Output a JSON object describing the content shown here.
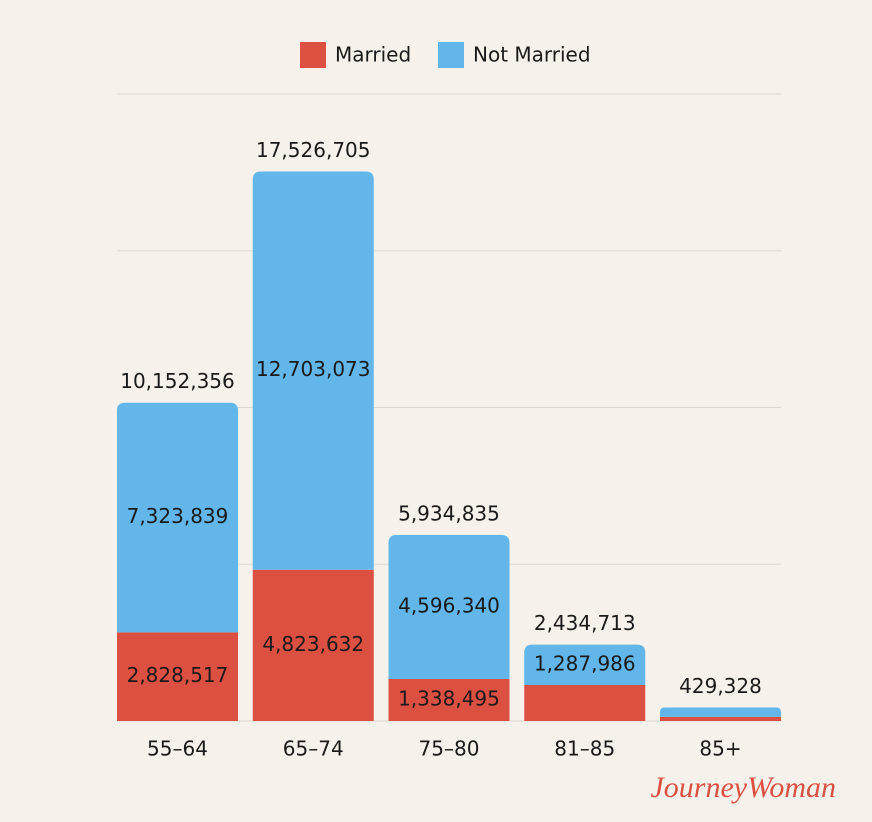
{
  "chart_data": {
    "type": "stacked-bar",
    "categories": [
      "55–64",
      "65–74",
      "75–80",
      "81–85",
      "85+"
    ],
    "series": [
      {
        "name": "Married",
        "color": "#dc5042",
        "values": [
          2828517,
          4823632,
          1338495,
          1146727,
          130000
        ],
        "value_labels": [
          "2,828,517",
          "4,823,632",
          "1,338,495",
          null,
          null
        ]
      },
      {
        "name": "Not Married",
        "color": "#62b6ea",
        "values": [
          7323839,
          12703073,
          4596340,
          1287986,
          299328
        ],
        "value_labels": [
          "7,323,839",
          "12,703,073",
          "4,596,340",
          "1,287,986",
          null
        ]
      }
    ],
    "total_labels": [
      "10,152,356",
      "17,526,705",
      "5,934,835",
      "2,434,713",
      "429,328"
    ],
    "ylim": [
      0,
      20000000
    ],
    "yticks": [
      0,
      5000000,
      10000000,
      15000000,
      20000000
    ],
    "grid": true,
    "legend": "top",
    "logo": "JourneyWoman"
  }
}
